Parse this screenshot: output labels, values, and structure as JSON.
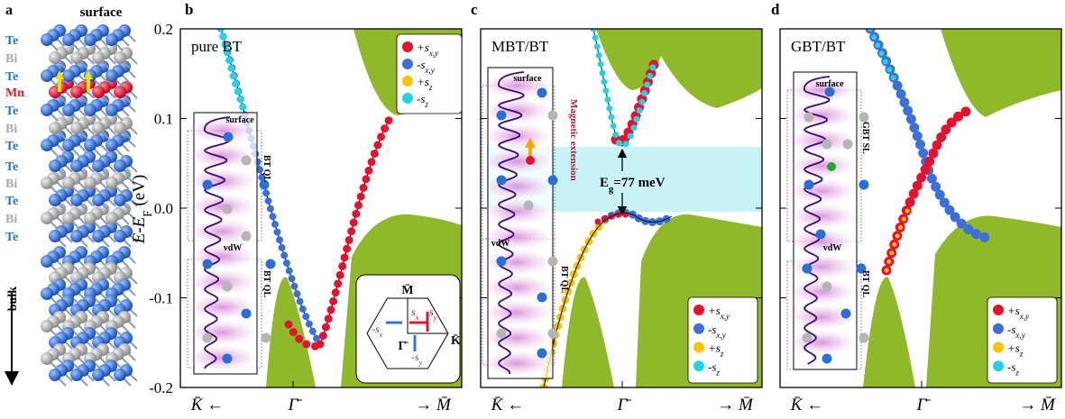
{
  "panel_a": {
    "label": "a",
    "top_label": "surface",
    "bottom_label": "bulk",
    "layers": [
      "Te",
      "Bi",
      "Te",
      "Mn",
      "Te",
      "Bi",
      "Te",
      "Te",
      "Bi",
      "Te",
      "Bi",
      "Te"
    ]
  },
  "y_axis": {
    "label": "E-E",
    "label_sub": "F",
    "label_unit": " (eV)",
    "ticks": [
      "0.2",
      "0.1",
      "0.0",
      "-0.1",
      "-0.2"
    ]
  },
  "panels": [
    {
      "label": "b",
      "title": "pure BT",
      "x_labels": [
        "K̄ ←",
        "Γ̄",
        "→ M̄"
      ],
      "legend": [
        {
          "sign": "+s",
          "sub": "x,y",
          "color": "#e3132f"
        },
        {
          "sign": "-s",
          "sub": "x,y",
          "color": "#3d6fd8"
        },
        {
          "sign": "+s",
          "sub": "z",
          "color": "#f6c400"
        },
        {
          "sign": "-s",
          "sub": "z",
          "color": "#22d3e8"
        }
      ],
      "inset_labels": [
        "surface",
        "BT QL",
        "vdW",
        "BT QL"
      ],
      "bz": {
        "m": "M̄",
        "k": "K̄",
        "gamma": "Γ̄",
        "spins": [
          {
            "sign": "s",
            "sub": "x"
          },
          {
            "sign": "s",
            "sub": "y"
          },
          {
            "sign": "-s",
            "sub": "x"
          },
          {
            "sign": "-s",
            "sub": "y"
          }
        ]
      }
    },
    {
      "label": "c",
      "title": "MBT/BT",
      "x_labels": [
        "K̄ ←",
        "Γ̄",
        "→ M̄"
      ],
      "legend": [
        {
          "sign": "+s",
          "sub": "x,y",
          "color": "#e3132f"
        },
        {
          "sign": "-s",
          "sub": "x,y",
          "color": "#3d6fd8"
        },
        {
          "sign": "+s",
          "sub": "z",
          "color": "#f6c400"
        },
        {
          "sign": "-s",
          "sub": "z",
          "color": "#22d3e8"
        }
      ],
      "inset_labels": [
        "surface",
        "vdW",
        "BT QL",
        "Magnetic extension"
      ],
      "gap_label": {
        "main": "E",
        "sub": "g",
        "rest": "=77 meV"
      }
    },
    {
      "label": "d",
      "title": "GBT/BT",
      "x_labels": [
        "K̄ ←",
        "Γ̄",
        "→ M̄"
      ],
      "legend": [
        {
          "sign": "+s",
          "sub": "x,y",
          "color": "#e3132f"
        },
        {
          "sign": "-s",
          "sub": "x,y",
          "color": "#3d6fd8"
        },
        {
          "sign": "+s",
          "sub": "z",
          "color": "#f6c400"
        },
        {
          "sign": "-s",
          "sub": "z",
          "color": "#22d3e8"
        }
      ],
      "inset_labels": [
        "surface",
        "GBT SL",
        "vdW",
        "BT QL"
      ]
    }
  ]
}
